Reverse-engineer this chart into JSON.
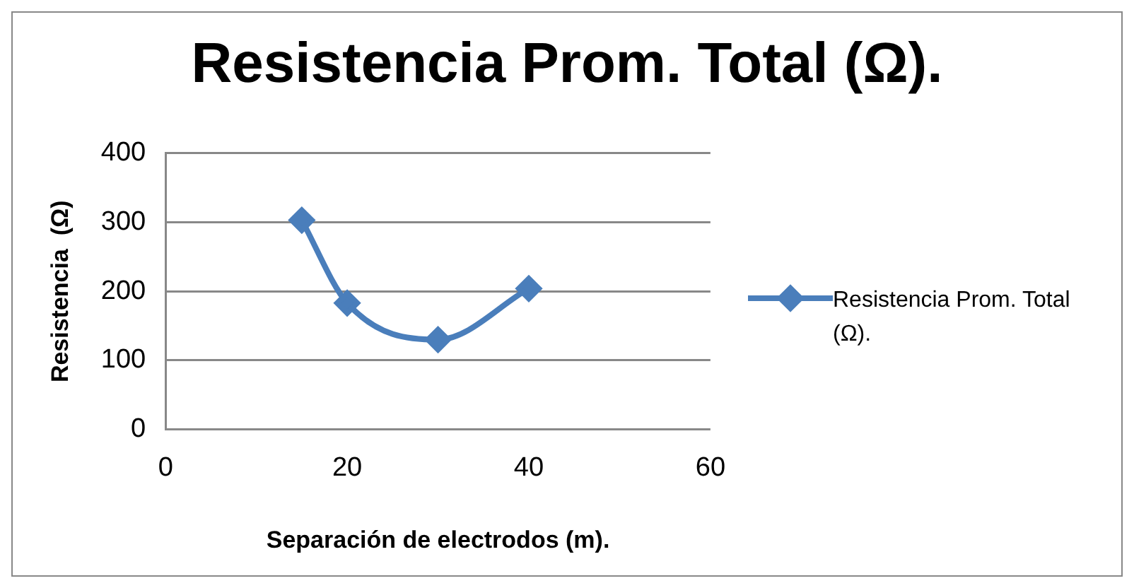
{
  "chart_data": {
    "type": "line",
    "title": "Resistencia Prom. Total (Ω).",
    "xlabel": "Separación de electrodos (m).",
    "ylabel": "Resistencia  (Ω)",
    "x": [
      15,
      20,
      30,
      40
    ],
    "series": [
      {
        "name": "Resistencia Prom. Total (Ω).",
        "color": "#4a7ebb",
        "values": [
          303,
          183,
          130,
          204
        ]
      }
    ],
    "xlim": [
      0,
      60
    ],
    "xticks": [
      0,
      20,
      40,
      60
    ],
    "ylim": [
      0,
      400
    ],
    "yticks": [
      0,
      100,
      200,
      300,
      400
    ],
    "grid": "y",
    "legend": "right",
    "marker": "diamond",
    "line_style": "solid"
  }
}
